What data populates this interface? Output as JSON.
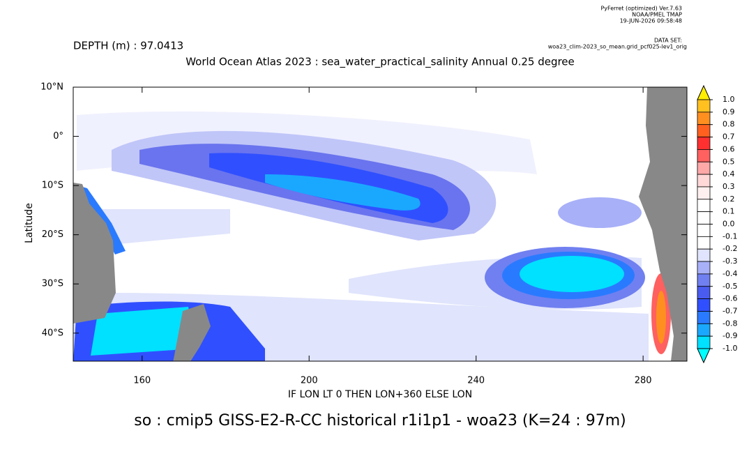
{
  "header": {
    "software": "PyFerret (optimized) Ver.7.63",
    "lab": "NOAA/PMEL TMAP",
    "timestamp": "19-JUN-2026 09:58:48",
    "dataset_label": "DATA SET:",
    "dataset": "woa23_clim-2023_so_mean.grid_pcf025-lev1_orig"
  },
  "plot": {
    "depth": "DEPTH (m) : 97.0413",
    "title": "World Ocean Atlas 2023 : sea_water_practical_salinity Annual  0.25 degree",
    "ylabel": "Latitude",
    "xlabel": "IF LON LT 0 THEN LON+360 ELSE LON",
    "caption": "so : cmip5 GISS-E2-R-CC historical r1i1p1 - woa23  (K=24 : 97m)",
    "xlim": [
      143.5,
      290.5
    ],
    "ylim": [
      -45.7,
      10
    ],
    "xticks": [
      160,
      200,
      240,
      280
    ],
    "yticks": [
      {
        "value": 10,
        "label": "10°N"
      },
      {
        "value": 0,
        "label": "0°"
      },
      {
        "value": -10,
        "label": "10°S"
      },
      {
        "value": -20,
        "label": "20°S"
      },
      {
        "value": -30,
        "label": "30°S"
      },
      {
        "value": -40,
        "label": "40°S"
      }
    ]
  },
  "colorbar": {
    "levels": [
      {
        "value": 1,
        "label": "1.0"
      },
      0.9,
      0.8,
      0.7,
      0.6,
      0.5,
      0.4,
      0.3,
      0.2,
      0.1,
      {
        "value": 0,
        "label": "0.0"
      },
      -0.1,
      -0.2,
      -0.3,
      -0.4,
      -0.5,
      -0.6,
      -0.7,
      -0.8,
      -0.9,
      {
        "value": -1,
        "label": "-1.0"
      }
    ],
    "colors": [
      "#ffee00",
      "#ffc020",
      "#ff9020",
      "#ff6020",
      "#ff3030",
      "#ff6060",
      "#ffa8a8",
      "#ffd8d8",
      "#fff0f0",
      "#ffffff",
      "#ffffff",
      "#ffffff",
      "#ffffff",
      "#e0e4fc",
      "#a8b0f8",
      "#7080f0",
      "#4a5cf0",
      "#3050ff",
      "#2a7aff",
      "#1aa8ff",
      "#00e0ff",
      "#00ffff"
    ]
  }
}
